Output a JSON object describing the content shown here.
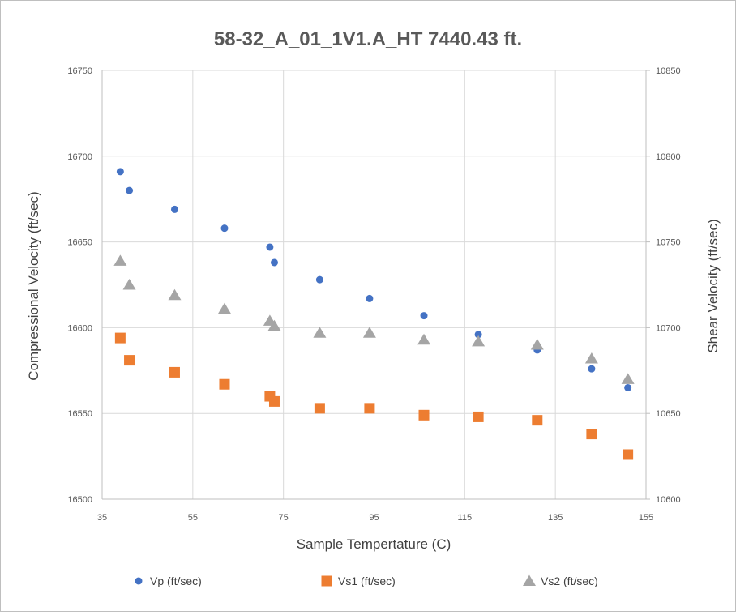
{
  "chart_data": {
    "type": "scatter",
    "title": "58-32_A_01_1V1.A_HT  7440.43 ft.",
    "xlabel": "Sample Tempertature (C)",
    "ylabel": "Compressional Velocity (ft/sec)",
    "y2label": "Shear Velocity (ft/sec)",
    "xlim": [
      35,
      155
    ],
    "ylim": [
      16500,
      16750
    ],
    "y2lim": [
      10600,
      10850
    ],
    "xticks": [
      "35",
      "55",
      "75",
      "95",
      "115",
      "135",
      "155"
    ],
    "yticks": [
      "16500",
      "16550",
      "16600",
      "16650",
      "16700",
      "16750"
    ],
    "y2ticks": [
      "10600",
      "10650",
      "10700",
      "10750",
      "10800",
      "10850"
    ],
    "grid": true,
    "legend": "bottom",
    "series": [
      {
        "name": "Vp  (ft/sec)",
        "axis": "left",
        "marker": "circle",
        "color": "#4472C4",
        "x": [
          39,
          41,
          51,
          62,
          72,
          73,
          83,
          94,
          106,
          118,
          131,
          143,
          151
        ],
        "y": [
          16691,
          16680,
          16669,
          16658,
          16647,
          16638,
          16628,
          16617,
          16607,
          16596,
          16587,
          16576,
          16565
        ]
      },
      {
        "name": "Vs1 (ft/sec)",
        "axis": "right",
        "marker": "square",
        "color": "#ED7D31",
        "x": [
          39,
          41,
          51,
          62,
          72,
          73,
          83,
          94,
          106,
          118,
          131,
          143,
          151
        ],
        "y": [
          10694,
          10681,
          10674,
          10667,
          10660,
          10657,
          10653,
          10653,
          10649,
          10648,
          10646,
          10638,
          10626
        ]
      },
      {
        "name": "Vs2 (ft/sec)",
        "axis": "right",
        "marker": "triangle",
        "color": "#A5A5A5",
        "x": [
          39,
          41,
          51,
          62,
          72,
          73,
          83,
          94,
          106,
          118,
          131,
          143,
          151
        ],
        "y": [
          10739,
          10725,
          10719,
          10711,
          10704,
          10701,
          10697,
          10697,
          10693,
          10692,
          10690,
          10682,
          10670
        ]
      }
    ]
  }
}
